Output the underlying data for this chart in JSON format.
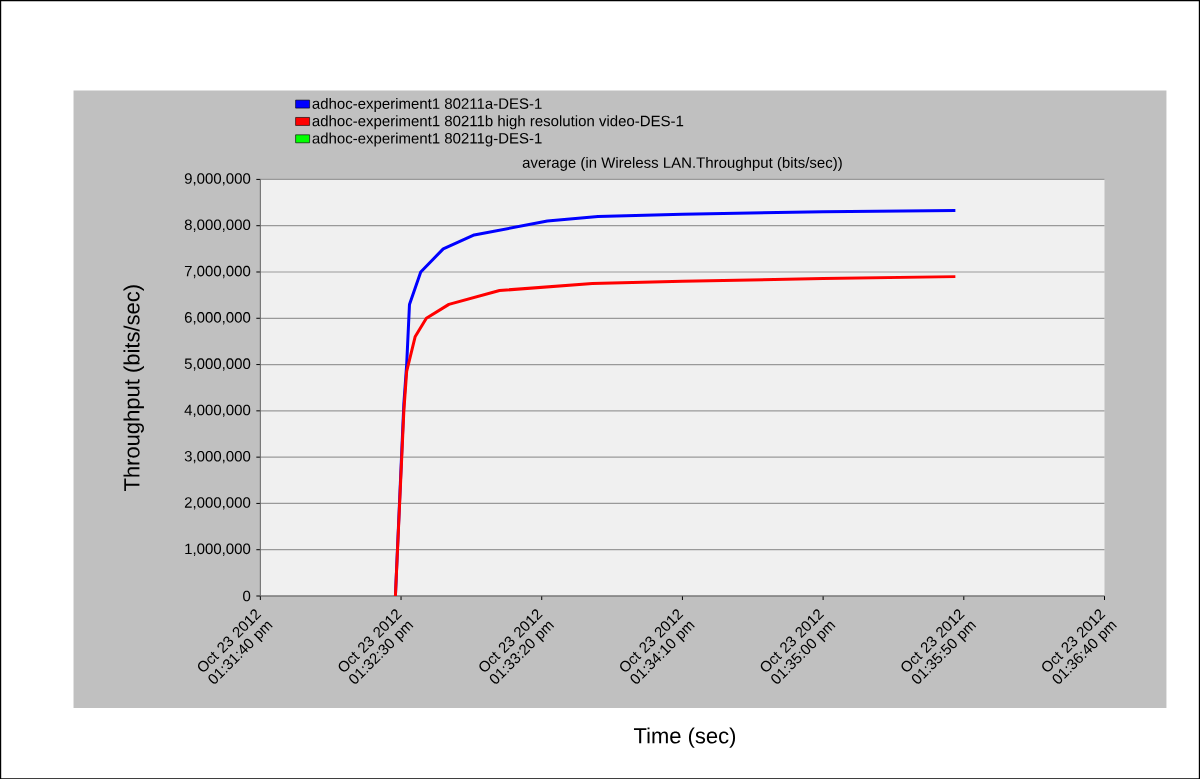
{
  "chart_data": {
    "type": "line",
    "title": "average (in Wireless LAN.Throughput (bits/sec))",
    "xlabel": "Time (sec)",
    "ylabel": "Throughput (bits/sec)",
    "series": [
      {
        "name": "adhoc-experiment1 80211a-DES-1",
        "color": "#0000ff",
        "x": [
          "2012-10-23T13:32:28",
          "2012-10-23T13:32:31",
          "2012-10-23T13:32:32",
          "2012-10-23T13:32:33",
          "2012-10-23T13:32:37",
          "2012-10-23T13:32:45",
          "2012-10-23T13:32:56",
          "2012-10-23T13:33:22",
          "2012-10-23T13:33:40",
          "2012-10-23T13:34:10",
          "2012-10-23T13:35:00",
          "2012-10-23T13:35:47"
        ],
        "values": [
          0,
          4150000,
          5000000,
          6300000,
          7000000,
          7500000,
          7800000,
          8100000,
          8200000,
          8250000,
          8300000,
          8330000
        ]
      },
      {
        "name": "adhoc-experiment1 80211b high resolution video-DES-1",
        "color": "#ff0000",
        "x": [
          "2012-10-23T13:32:28",
          "2012-10-23T13:32:31",
          "2012-10-23T13:32:32",
          "2012-10-23T13:32:35",
          "2012-10-23T13:32:39",
          "2012-10-23T13:32:47",
          "2012-10-23T13:33:05",
          "2012-10-23T13:33:38",
          "2012-10-23T13:34:10",
          "2012-10-23T13:35:00",
          "2012-10-23T13:35:47"
        ],
        "values": [
          0,
          4000000,
          4850000,
          5600000,
          6000000,
          6300000,
          6600000,
          6750000,
          6800000,
          6860000,
          6900000
        ]
      },
      {
        "name": "adhoc-experiment1 80211g-DES-1",
        "color": "#00ff00"
      }
    ],
    "xlim": [
      "2012-10-23T13:31:40",
      "2012-10-23T13:36:40"
    ],
    "xticks": [
      {
        "value": "2012-10-23T13:31:40",
        "label": "Oct 23 2012 01:31:40 pm"
      },
      {
        "value": "2012-10-23T13:32:30",
        "label": "Oct 23 2012 01:32:30 pm"
      },
      {
        "value": "2012-10-23T13:33:20",
        "label": "Oct 23 2012 01:33:20 pm"
      },
      {
        "value": "2012-10-23T13:34:10",
        "label": "Oct 23 2012 01:34:10 pm"
      },
      {
        "value": "2012-10-23T13:35:00",
        "label": "Oct 23 2012 01:35:00 pm"
      },
      {
        "value": "2012-10-23T13:35:50",
        "label": "Oct 23 2012 01:35:50 pm"
      },
      {
        "value": "2012-10-23T13:36:40",
        "label": "Oct 23 2012 01:36:40 pm"
      }
    ],
    "ylim": [
      0,
      9000000
    ],
    "yticks": [
      0,
      {
        "value": 1000000,
        "label": "1,000,000"
      },
      {
        "value": 2000000,
        "label": "2,000,000"
      },
      {
        "value": 3000000,
        "label": "3,000,000"
      },
      {
        "value": 4000000,
        "label": "4,000,000"
      },
      {
        "value": 5000000,
        "label": "5,000,000"
      },
      {
        "value": 6000000,
        "label": "6,000,000"
      },
      {
        "value": 7000000,
        "label": "7,000,000"
      },
      {
        "value": 8000000,
        "label": "8,000,000"
      },
      {
        "value": 9000000,
        "label": "9,000,000"
      }
    ],
    "grid": "y",
    "legend": "top",
    "marker": "none",
    "line_style": "solid"
  }
}
